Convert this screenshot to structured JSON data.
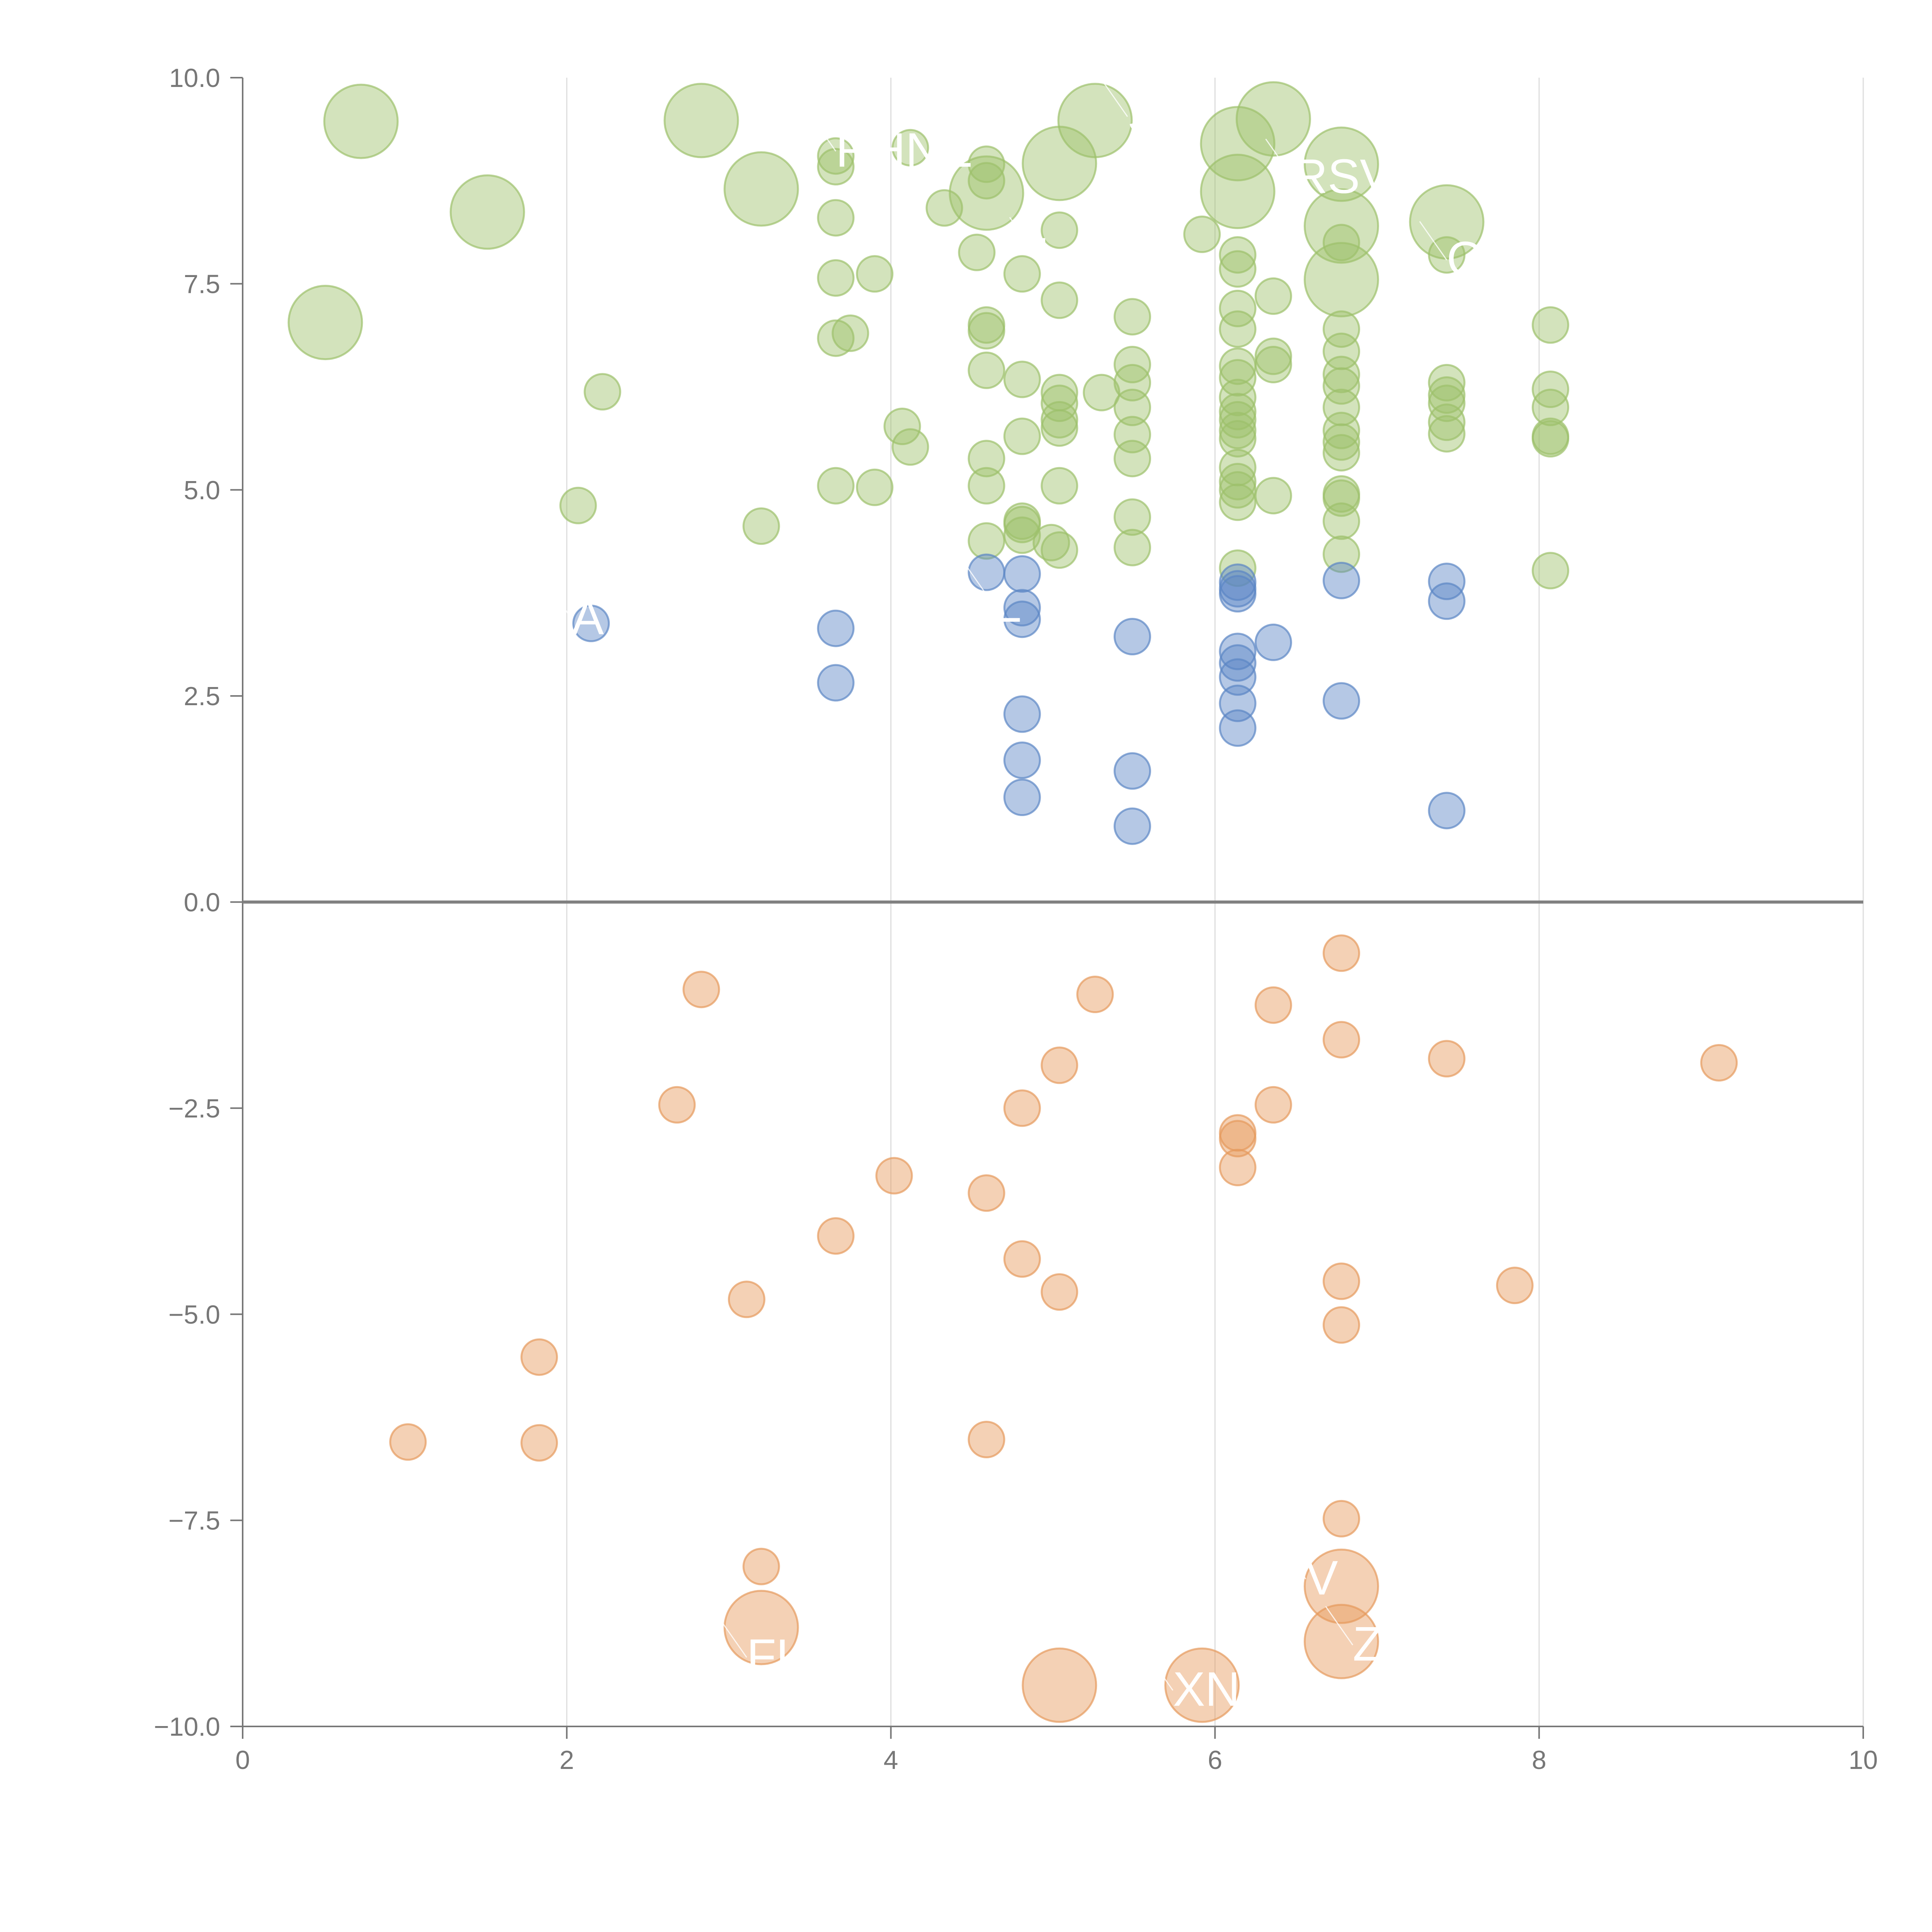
{
  "chart_data": {
    "type": "scatter",
    "title": "",
    "xlabel": "",
    "ylabel": "",
    "xlim": [
      0,
      10
    ],
    "ylim": [
      -10,
      10
    ],
    "grid_x": true,
    "grid_y": false,
    "zero_line": true,
    "x_ticks": [
      "0",
      "2",
      "4",
      "6",
      "8",
      "10"
    ],
    "y_ticks": [
      "10.0",
      "7.5",
      "5.0",
      "2.5",
      "0.0",
      "−2.5",
      "−5.0",
      "−7.5",
      "−10.0"
    ],
    "colors": {
      "green": "#9dc16b",
      "blue": "#5b86c5",
      "orange": "#e69a5c",
      "axis": "#777777",
      "grid": "#dddddd",
      "zero_line": "#808080"
    },
    "series": [
      {
        "name": "high-positive",
        "color": "green",
        "points": [
          [
            0.73,
            9.47,
            2
          ],
          [
            2.83,
            9.48,
            2
          ],
          [
            1.51,
            8.37,
            2
          ],
          [
            0.51,
            7.03,
            2
          ],
          [
            3.2,
            8.65,
            2
          ],
          [
            5.26,
            9.48,
            2
          ],
          [
            5.04,
            8.96,
            2
          ],
          [
            6.36,
            9.5,
            2
          ],
          [
            6.14,
            9.2,
            2
          ],
          [
            6.14,
            8.62,
            2
          ],
          [
            6.78,
            8.95,
            2
          ],
          [
            6.78,
            8.2,
            2
          ],
          [
            6.78,
            7.55,
            2
          ],
          [
            7.43,
            8.25,
            2
          ],
          [
            4.59,
            8.6,
            2
          ],
          [
            3.66,
            9.05,
            1
          ],
          [
            3.66,
            8.92,
            1
          ],
          [
            4.12,
            9.15,
            1
          ],
          [
            4.59,
            8.95,
            1
          ],
          [
            4.59,
            8.75,
            1
          ],
          [
            4.33,
            8.42,
            1
          ],
          [
            3.66,
            8.3,
            1
          ],
          [
            5.04,
            8.15,
            1
          ],
          [
            4.53,
            7.88,
            1
          ],
          [
            4.81,
            7.62,
            1
          ],
          [
            3.66,
            7.57,
            1
          ],
          [
            3.9,
            7.62,
            1
          ],
          [
            5.04,
            7.3,
            1
          ],
          [
            5.92,
            8.1,
            1
          ],
          [
            6.14,
            7.85,
            1
          ],
          [
            6.14,
            7.68,
            1
          ],
          [
            6.36,
            7.35,
            1
          ],
          [
            6.78,
            8.0,
            1
          ],
          [
            7.43,
            7.85,
            1
          ],
          [
            6.14,
            7.2,
            1
          ],
          [
            6.14,
            6.95,
            1
          ],
          [
            6.78,
            6.95,
            1
          ],
          [
            6.78,
            6.68,
            1
          ],
          [
            5.49,
            7.1,
            1
          ],
          [
            4.59,
            7.0,
            1
          ],
          [
            4.59,
            6.93,
            1
          ],
          [
            3.75,
            6.9,
            1
          ],
          [
            3.66,
            6.84,
            1
          ],
          [
            8.07,
            7.0,
            1
          ],
          [
            2.22,
            6.19,
            1
          ],
          [
            4.59,
            6.45,
            1
          ],
          [
            4.81,
            6.34,
            1
          ],
          [
            5.04,
            6.18,
            1
          ],
          [
            5.04,
            6.05,
            1
          ],
          [
            5.3,
            6.18,
            1
          ],
          [
            5.49,
            6.52,
            1
          ],
          [
            5.49,
            6.3,
            1
          ],
          [
            5.49,
            6.0,
            1
          ],
          [
            6.14,
            6.5,
            1
          ],
          [
            6.14,
            6.36,
            1
          ],
          [
            6.14,
            6.12,
            1
          ],
          [
            6.14,
            5.95,
            1
          ],
          [
            6.36,
            6.62,
            1
          ],
          [
            6.36,
            6.52,
            1
          ],
          [
            6.78,
            6.4,
            1
          ],
          [
            6.78,
            6.26,
            1
          ],
          [
            6.78,
            6.0,
            1
          ],
          [
            7.43,
            6.3,
            1
          ],
          [
            7.43,
            6.15,
            1
          ],
          [
            7.43,
            6.05,
            1
          ],
          [
            8.07,
            6.22,
            1
          ],
          [
            8.07,
            6.0,
            1
          ],
          [
            4.07,
            5.77,
            1
          ],
          [
            4.12,
            5.52,
            1
          ],
          [
            4.81,
            5.65,
            1
          ],
          [
            5.04,
            5.85,
            1
          ],
          [
            5.04,
            5.75,
            1
          ],
          [
            5.49,
            5.67,
            1
          ],
          [
            5.49,
            5.38,
            1
          ],
          [
            6.14,
            5.85,
            1
          ],
          [
            6.14,
            5.72,
            1
          ],
          [
            6.14,
            5.62,
            1
          ],
          [
            6.78,
            5.72,
            1
          ],
          [
            6.78,
            5.58,
            1
          ],
          [
            7.43,
            5.82,
            1
          ],
          [
            7.43,
            5.68,
            1
          ],
          [
            8.07,
            5.65,
            1
          ],
          [
            8.07,
            5.62,
            1
          ],
          [
            4.59,
            5.38,
            1
          ],
          [
            6.14,
            5.27,
            1
          ],
          [
            6.14,
            5.1,
            1
          ],
          [
            6.78,
            5.45,
            1
          ],
          [
            3.66,
            5.05,
            1
          ],
          [
            3.9,
            5.03,
            1
          ],
          [
            4.59,
            5.05,
            1
          ],
          [
            5.04,
            5.05,
            1
          ],
          [
            6.14,
            5.0,
            1
          ],
          [
            6.14,
            4.85,
            1
          ],
          [
            6.36,
            4.93,
            1
          ],
          [
            6.78,
            4.95,
            1
          ],
          [
            6.78,
            4.9,
            1
          ],
          [
            2.07,
            4.81,
            1
          ],
          [
            3.2,
            4.56,
            1
          ],
          [
            4.81,
            4.62,
            1
          ],
          [
            4.81,
            4.58,
            1
          ],
          [
            5.49,
            4.67,
            1
          ],
          [
            6.78,
            4.62,
            1
          ],
          [
            4.59,
            4.38,
            1
          ],
          [
            4.81,
            4.45,
            1
          ],
          [
            4.99,
            4.36,
            1
          ],
          [
            5.04,
            4.27,
            1
          ],
          [
            5.49,
            4.3,
            1
          ],
          [
            6.78,
            4.22,
            1
          ],
          [
            6.14,
            4.05,
            1
          ],
          [
            8.07,
            4.02,
            1
          ]
        ]
      },
      {
        "name": "low-positive",
        "color": "blue",
        "points": [
          [
            2.15,
            3.38,
            1
          ],
          [
            3.66,
            3.32,
            1
          ],
          [
            3.66,
            2.66,
            1
          ],
          [
            4.59,
            4.0,
            1
          ],
          [
            4.81,
            3.98,
            1
          ],
          [
            4.81,
            3.57,
            1
          ],
          [
            4.81,
            3.43,
            1
          ],
          [
            4.81,
            2.28,
            1
          ],
          [
            4.81,
            1.72,
            1
          ],
          [
            4.81,
            1.27,
            1
          ],
          [
            5.49,
            3.22,
            1
          ],
          [
            5.49,
            1.59,
            1
          ],
          [
            5.49,
            0.92,
            1
          ],
          [
            6.14,
            3.88,
            1
          ],
          [
            6.14,
            3.8,
            1
          ],
          [
            6.14,
            3.74,
            1
          ],
          [
            6.14,
            3.04,
            1
          ],
          [
            6.14,
            2.9,
            1
          ],
          [
            6.14,
            2.73,
            1
          ],
          [
            6.14,
            2.41,
            1
          ],
          [
            6.14,
            2.11,
            1
          ],
          [
            6.36,
            3.15,
            1
          ],
          [
            6.78,
            3.9,
            1
          ],
          [
            6.78,
            2.44,
            1
          ],
          [
            7.43,
            3.89,
            1
          ],
          [
            7.43,
            3.65,
            1
          ],
          [
            7.43,
            1.11,
            1
          ]
        ]
      },
      {
        "name": "negative",
        "color": "orange",
        "points": [
          [
            2.83,
            -1.06,
            1
          ],
          [
            5.26,
            -1.12,
            1
          ],
          [
            6.36,
            -1.25,
            1
          ],
          [
            6.78,
            -0.62,
            1
          ],
          [
            6.78,
            -1.67,
            1
          ],
          [
            7.43,
            -1.9,
            1
          ],
          [
            9.11,
            -1.95,
            1
          ],
          [
            5.04,
            -1.98,
            1
          ],
          [
            2.68,
            -2.46,
            1
          ],
          [
            4.81,
            -2.5,
            1
          ],
          [
            6.36,
            -2.46,
            1
          ],
          [
            6.14,
            -2.8,
            1
          ],
          [
            6.14,
            -2.87,
            1
          ],
          [
            6.14,
            -3.22,
            1
          ],
          [
            4.02,
            -3.32,
            1
          ],
          [
            4.59,
            -3.53,
            1
          ],
          [
            3.66,
            -4.05,
            1
          ],
          [
            4.81,
            -4.33,
            1
          ],
          [
            6.78,
            -4.6,
            1
          ],
          [
            7.85,
            -4.65,
            1
          ],
          [
            5.04,
            -4.73,
            1
          ],
          [
            3.11,
            -4.82,
            1
          ],
          [
            6.78,
            -5.13,
            1
          ],
          [
            1.83,
            -5.52,
            1
          ],
          [
            1.02,
            -6.55,
            1
          ],
          [
            1.83,
            -6.56,
            1
          ],
          [
            4.59,
            -6.52,
            1
          ],
          [
            6.78,
            -7.48,
            1
          ],
          [
            3.2,
            -8.06,
            1
          ],
          [
            3.2,
            -8.8,
            2
          ],
          [
            6.78,
            -8.3,
            2
          ],
          [
            6.78,
            -8.97,
            2
          ],
          [
            5.04,
            -9.5,
            2
          ],
          [
            5.92,
            -9.5,
            2
          ]
        ]
      }
    ],
    "labels": [
      {
        "text": "RHNE",
        "x": 3.66,
        "y": 8.92,
        "anchor": "start"
      },
      {
        "text": "S",
        "x": 5.46,
        "y": 9.34,
        "anchor": "start"
      },
      {
        "text": "RSV",
        "x": 6.48,
        "y": 8.6,
        "anchor": "start"
      },
      {
        "text": "L",
        "x": 4.9,
        "y": 7.65,
        "anchor": "start"
      },
      {
        "text": "O",
        "x": 7.43,
        "y": 7.6,
        "anchor": "start"
      },
      {
        "text": "A",
        "x": 2.03,
        "y": 3.25,
        "anchor": "start"
      },
      {
        "text": "L",
        "x": 4.64,
        "y": 3.4,
        "anchor": "start"
      },
      {
        "text": "V",
        "x": 6.56,
        "y": -8.4,
        "anchor": "start"
      },
      {
        "text": "FL",
        "x": 3.11,
        "y": -9.35,
        "anchor": "start"
      },
      {
        "text": "XN",
        "x": 5.74,
        "y": -9.75,
        "anchor": "start"
      },
      {
        "text": "Z",
        "x": 6.85,
        "y": -9.2,
        "anchor": "start"
      }
    ]
  }
}
